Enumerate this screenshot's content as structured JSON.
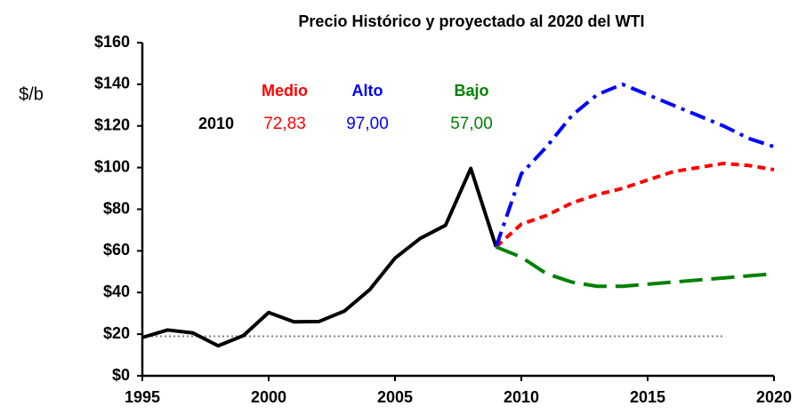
{
  "chart_data": {
    "type": "line",
    "title": "Precio Histórico y proyectado al 2020 del WTI",
    "ylabel": "$/b",
    "x": [
      1995,
      1996,
      1997,
      1998,
      1999,
      2000,
      2001,
      2002,
      2003,
      2004,
      2005,
      2006,
      2007,
      2008,
      2009,
      2010,
      2011,
      2012,
      2013,
      2014,
      2015,
      2016,
      2017,
      2018,
      2019,
      2020
    ],
    "series": [
      {
        "color": "#000000",
        "linestyle": "solid",
        "values": [
          18.4,
          22,
          20.6,
          14.4,
          19.3,
          30.4,
          25.9,
          26.1,
          31.1,
          41.4,
          56.5,
          66,
          72.3,
          99.6,
          61.9,
          null,
          null,
          null,
          null,
          null,
          null,
          null,
          null,
          null,
          null,
          null
        ]
      },
      {
        "name": "Medio",
        "color": "#ff0000",
        "linestyle": "dashed",
        "values": [
          null,
          null,
          null,
          null,
          null,
          null,
          null,
          null,
          null,
          null,
          null,
          null,
          null,
          null,
          61.9,
          72.83,
          77,
          83,
          87,
          90,
          94,
          98,
          100,
          102,
          101,
          99
        ],
        "value_labels": [
          null,
          null,
          null,
          null,
          null,
          null,
          null,
          null,
          null,
          null,
          null,
          null,
          null,
          null,
          null,
          "72,83",
          null,
          null,
          null,
          null,
          null,
          null,
          null,
          null,
          null,
          null
        ]
      },
      {
        "name": "Alto",
        "color": "#0000ff",
        "linestyle": "dashdot",
        "values": [
          null,
          null,
          null,
          null,
          null,
          null,
          null,
          null,
          null,
          null,
          null,
          null,
          null,
          null,
          61.9,
          97,
          110,
          125,
          135,
          140,
          135,
          130,
          125,
          120,
          114,
          110
        ],
        "value_labels": [
          null,
          null,
          null,
          null,
          null,
          null,
          null,
          null,
          null,
          null,
          null,
          null,
          null,
          null,
          null,
          "97,00",
          null,
          null,
          null,
          null,
          null,
          null,
          null,
          null,
          null,
          null
        ]
      },
      {
        "name": "Bajo",
        "color": "#008000",
        "linestyle": "longdash",
        "values": [
          null,
          null,
          null,
          null,
          null,
          null,
          null,
          null,
          null,
          null,
          null,
          null,
          null,
          null,
          61.9,
          57,
          49,
          45,
          43,
          43,
          44,
          45,
          46,
          47,
          48,
          49
        ],
        "value_labels": [
          null,
          null,
          null,
          null,
          null,
          null,
          null,
          null,
          null,
          null,
          null,
          null,
          null,
          null,
          null,
          "57,00",
          null,
          null,
          null,
          null,
          null,
          null,
          null,
          null,
          null,
          null
        ]
      }
    ],
    "reference_line": {
      "value": 19,
      "x": [
        1995,
        2018
      ],
      "color": "#808080"
    },
    "xlim": [
      1995,
      2020
    ],
    "xticks": [
      1995,
      2000,
      2005,
      2010,
      2015,
      2020
    ],
    "ylim": [
      0,
      160
    ],
    "yticks": [
      {
        "value": 0,
        "label": "$0"
      },
      {
        "value": 20,
        "label": "$20"
      },
      {
        "value": 40,
        "label": "$40"
      },
      {
        "value": 60,
        "label": "$60"
      },
      {
        "value": 80,
        "label": "$80"
      },
      {
        "value": 100,
        "label": "$100"
      },
      {
        "value": 120,
        "label": "$120"
      },
      {
        "value": 140,
        "label": "$140"
      },
      {
        "value": 160,
        "label": "$160"
      }
    ]
  }
}
